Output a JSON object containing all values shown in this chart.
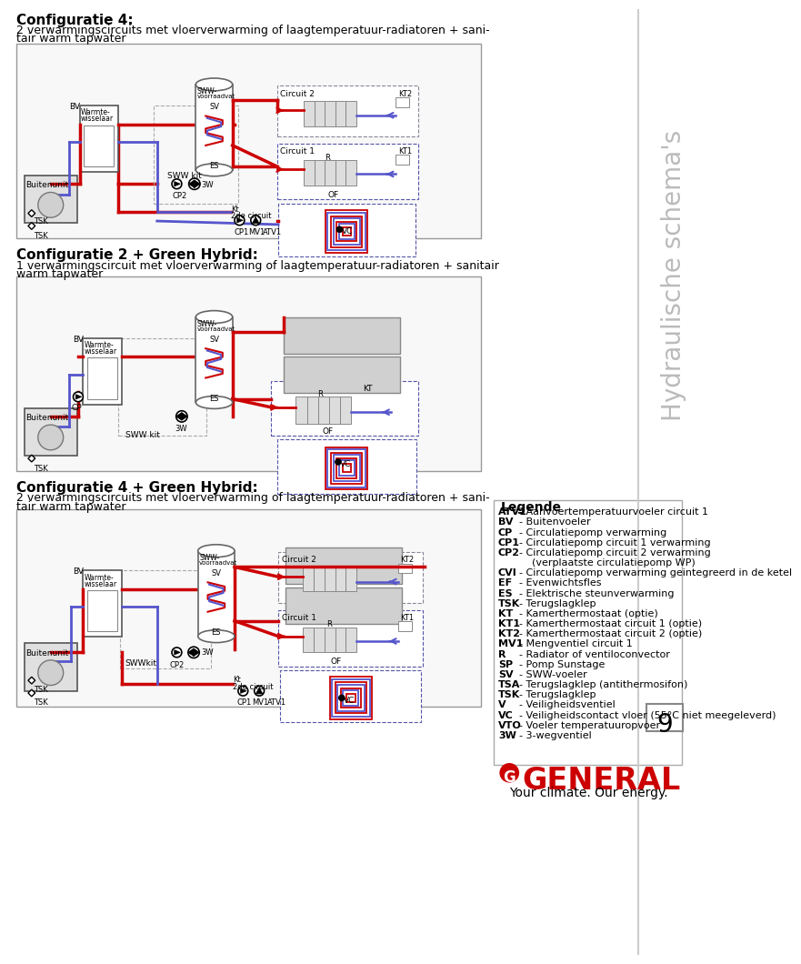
{
  "background_color": "#ffffff",
  "page_number": "9",
  "sidebar_text": "Hydraulische schema's",
  "section1": {
    "title_bold": "Configuratie 4:",
    "desc1": "2 verwarmingscircuits met vloerverwarming of laagtemperatuur-radiatoren + sani-",
    "desc2": "tair warm tapwater"
  },
  "section2": {
    "title_bold": "Configuratie 2 + Green Hybrid:",
    "desc1": "1 verwarmingscircuit met vloerverwarming of laagtemperatuur-radiatoren + sanitair",
    "desc2": "warm tapwater"
  },
  "section3": {
    "title_bold": "Configuratie 4 + Green Hybrid:",
    "desc1": "2 verwarmingscircuits met vloerverwarming of laagtemperatuur-radiatoren + sani-",
    "desc2": "tair warm tapwater"
  },
  "legend_title": "Legende",
  "legend_items": [
    [
      "ATV1",
      "- Aanvoertemperatuurvoeler circuit 1"
    ],
    [
      "BV",
      "- Buitenvoeler"
    ],
    [
      "CP",
      "- Circulatiepomp verwarming"
    ],
    [
      "CP1",
      "- Circulatiepomp circuit 1 verwarming"
    ],
    [
      "CP2",
      "- Circulatiepomp circuit 2 verwarming"
    ],
    [
      "",
      "    (verplaatste circulatiepomp WP)"
    ],
    [
      "CVI",
      "- Circulatiepomp verwarming geintegreerd in de ketel"
    ],
    [
      "EF",
      "- Evenwichtsfles"
    ],
    [
      "ES",
      "- Elektrische steunverwarming"
    ],
    [
      "TSK",
      "- Terugslagklep"
    ],
    [
      "KT",
      "- Kamerthermostaat (optie)"
    ],
    [
      "KT1",
      "- Kamerthermostaat circuit 1 (optie)"
    ],
    [
      "KT2",
      "- Kamerthermostaat circuit 2 (optie)"
    ],
    [
      "MV1",
      "- Mengventiel circuit 1"
    ],
    [
      "R",
      "- Radiator of ventiloconvector"
    ],
    [
      "SP",
      "- Pomp Sunstage"
    ],
    [
      "SV",
      "- SWW-voeler"
    ],
    [
      "TSA",
      "- Terugslagklep (antithermosifon)"
    ],
    [
      "TSK",
      "- Terugslagklep"
    ],
    [
      "V",
      "- Veiligheidsventiel"
    ],
    [
      "VC",
      "- Veiligheidscontact vloer (55°C niet meegeleverd)"
    ],
    [
      "VTO",
      "- Voeler temperatuuropvoer"
    ],
    [
      "3W",
      "- 3-wegventiel"
    ]
  ],
  "red_color": "#cc0000",
  "blue_color": "#5555cc",
  "title_fontsize": 11,
  "body_fontsize": 9,
  "legend_fontsize": 8.0
}
